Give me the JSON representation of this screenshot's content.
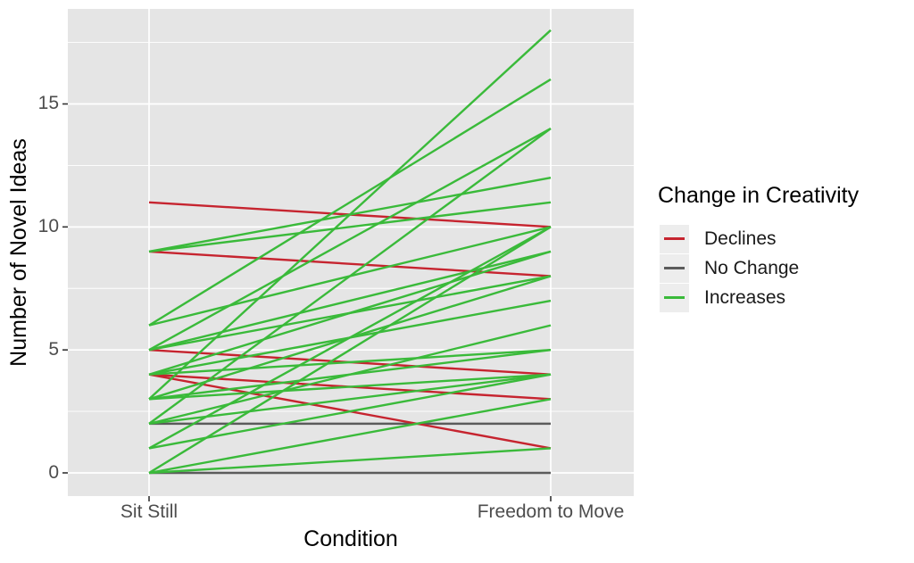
{
  "chart_data": {
    "type": "line",
    "subtype": "paired-slope-lines",
    "title": "",
    "xlabel": "Condition",
    "ylabel": "Number of Novel Ideas",
    "categories": [
      "Sit Still",
      "Freedom to Move"
    ],
    "y_ticks": [
      0,
      5,
      10,
      15
    ],
    "y_tick_labels": [
      "0",
      "5",
      "10",
      "15"
    ],
    "ylim": [
      -0.7,
      18.6
    ],
    "grid": {
      "major_y": [
        0,
        5,
        10,
        15
      ],
      "minor_y": [
        2.5,
        7.5,
        12.5,
        17.5
      ],
      "vertical_major_at_categories": true,
      "panel_background": "#e5e5e5",
      "gridline_color": "#ffffff"
    },
    "legend": {
      "title": "Change in Creativity",
      "position": "right",
      "entries": [
        {
          "label": "Declines",
          "color": "#c6242f"
        },
        {
          "label": "No Change",
          "color": "#5b5b5b"
        },
        {
          "label": "Increases",
          "color": "#3aba3a"
        }
      ]
    },
    "series": [
      {
        "name": "Declines",
        "color": "#c6242f",
        "pairs": [
          [
            11,
            10
          ],
          [
            9,
            8
          ],
          [
            5,
            4
          ],
          [
            4,
            3
          ],
          [
            4,
            1
          ]
        ]
      },
      {
        "name": "No Change",
        "color": "#5b5b5b",
        "pairs": [
          [
            2,
            2
          ],
          [
            0,
            0
          ]
        ]
      },
      {
        "name": "Increases",
        "color": "#3aba3a",
        "pairs": [
          [
            3,
            18
          ],
          [
            6,
            16
          ],
          [
            5,
            14
          ],
          [
            2,
            14
          ],
          [
            9,
            12
          ],
          [
            9,
            11
          ],
          [
            6,
            10
          ],
          [
            1,
            10
          ],
          [
            0,
            10
          ],
          [
            5,
            9
          ],
          [
            4,
            9
          ],
          [
            5,
            8
          ],
          [
            3,
            8
          ],
          [
            4,
            7
          ],
          [
            2,
            6
          ],
          [
            4,
            5
          ],
          [
            3,
            5
          ],
          [
            3,
            4
          ],
          [
            2,
            4
          ],
          [
            1,
            4
          ],
          [
            0,
            3
          ],
          [
            0,
            1
          ]
        ]
      }
    ]
  }
}
